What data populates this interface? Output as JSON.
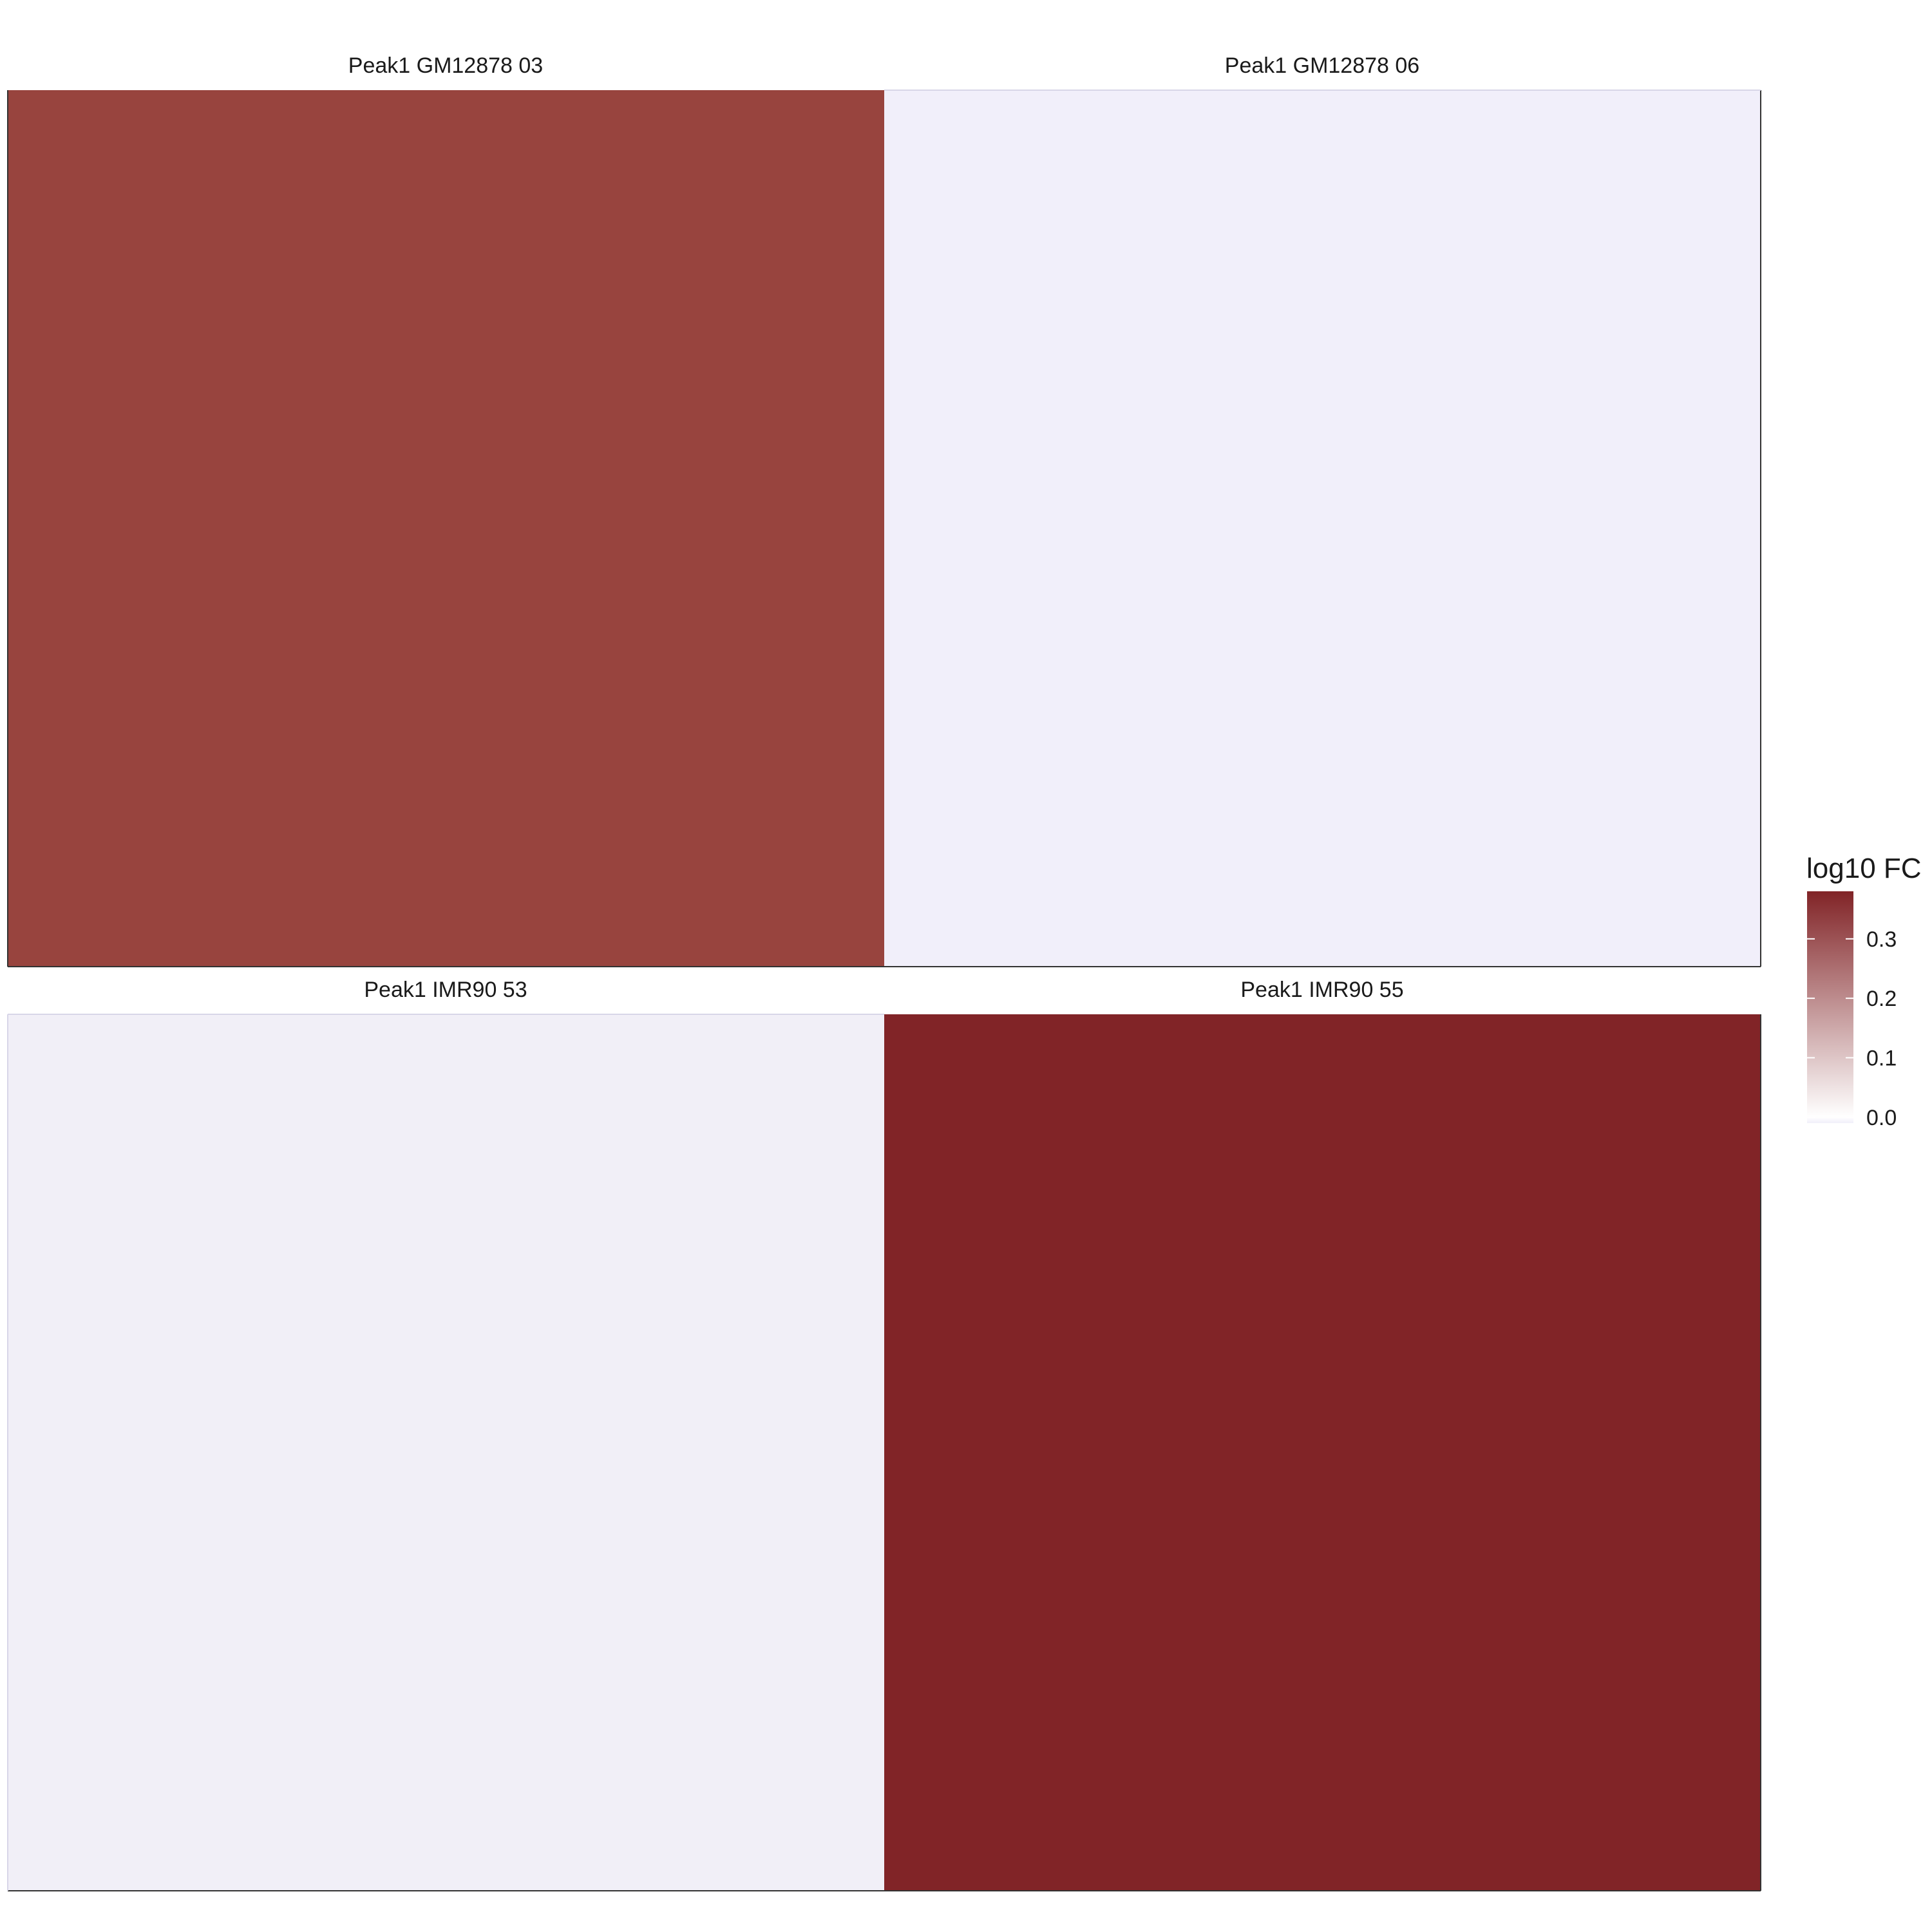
{
  "chart_data": {
    "type": "heatmap",
    "facets": [
      {
        "title": "Peak1 GM12878 03",
        "value": 0.31,
        "color": "#98443E"
      },
      {
        "title": "Peak1 GM12878 06",
        "value": 0.0,
        "color": "#F1EFFA"
      },
      {
        "title": "Peak1 IMR90 53",
        "value": 0.0,
        "color": "#F1EFF7"
      },
      {
        "title": "Peak1 IMR90 55",
        "value": 0.38,
        "color": "#812427"
      }
    ],
    "legend": {
      "title": "log10 FC",
      "ticks": [
        0.0,
        0.1,
        0.2,
        0.3
      ],
      "tick_labels": [
        "0.0",
        "0.1",
        "0.2",
        "0.3"
      ],
      "range": [
        -0.01,
        0.38
      ],
      "low_color": "#F1EFFA",
      "mid_color": "#FFFFFF",
      "high_color": "#812427",
      "placement": "right"
    }
  }
}
